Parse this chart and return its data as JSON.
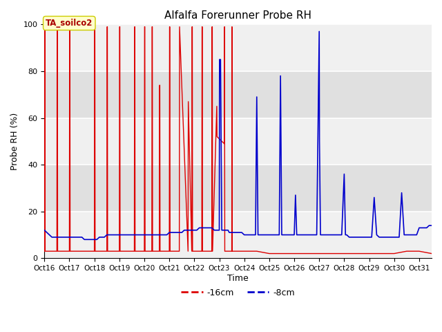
{
  "title": "Alfalfa Forerunner Probe RH",
  "ylabel": "Probe RH (%)",
  "xlabel": "Time",
  "annotation": "TA_soilco2",
  "ylim": [
    0,
    100
  ],
  "xlim": [
    0,
    15.5
  ],
  "legend_labels": [
    "-16cm",
    "-8cm"
  ],
  "legend_colors": [
    "#dd0000",
    "#0000cc"
  ],
  "bg_color": "#e8e8e8",
  "band_color": "#d0d0d0",
  "tick_labels": [
    "Oct 16",
    "Oct 17",
    "Oct 18",
    "Oct 19",
    "Oct 20",
    "Oct 21",
    "Oct 22",
    "Oct 23",
    "Oct 24",
    "Oct 25",
    "Oct 26",
    "Oct 27",
    "Oct 28",
    "Oct 29",
    "Oct 30",
    "Oct 31"
  ],
  "red_x": [
    0.0,
    0.01,
    0.02,
    0.03,
    0.5,
    0.51,
    0.52,
    0.53,
    1.0,
    1.01,
    1.02,
    1.03,
    2.0,
    2.01,
    2.02,
    2.03,
    2.5,
    2.51,
    2.52,
    2.53,
    3.0,
    3.01,
    3.02,
    3.03,
    3.6,
    3.61,
    3.62,
    3.63,
    4.0,
    4.01,
    4.02,
    4.03,
    4.3,
    4.31,
    4.32,
    4.33,
    4.6,
    4.61,
    4.62,
    4.63,
    5.0,
    5.01,
    5.02,
    5.03,
    5.4,
    5.41,
    5.75,
    5.76,
    5.9,
    5.91,
    5.92,
    5.93,
    6.3,
    6.31,
    6.32,
    6.33,
    6.7,
    6.71,
    6.72,
    6.73,
    6.9,
    6.91,
    7.2,
    7.21,
    7.22,
    7.5,
    7.51,
    7.52,
    8.0,
    8.5,
    9.0,
    9.5,
    10.0,
    10.5,
    11.0,
    11.5,
    12.0,
    12.5,
    13.0,
    13.5,
    14.0,
    14.5,
    15.0,
    15.5
  ],
  "red_y": [
    3,
    99,
    99,
    3,
    3,
    99,
    99,
    3,
    3,
    99,
    99,
    3,
    3,
    99,
    99,
    3,
    3,
    99,
    99,
    3,
    3,
    99,
    99,
    3,
    3,
    99,
    99,
    3,
    3,
    99,
    99,
    3,
    3,
    99,
    99,
    3,
    3,
    74,
    74,
    3,
    3,
    99,
    99,
    3,
    3,
    99,
    3,
    67,
    3,
    99,
    99,
    3,
    3,
    99,
    99,
    3,
    3,
    99,
    99,
    3,
    65,
    52,
    49,
    99,
    3,
    3,
    99,
    3,
    3,
    3,
    2,
    2,
    2,
    2,
    2,
    2,
    2,
    2,
    2,
    2,
    2,
    3,
    3,
    2
  ],
  "blue_x": [
    0.0,
    0.1,
    0.2,
    0.3,
    0.4,
    0.5,
    0.6,
    0.7,
    0.8,
    0.9,
    1.0,
    1.1,
    1.2,
    1.3,
    1.4,
    1.5,
    1.6,
    1.7,
    1.8,
    1.9,
    2.0,
    2.1,
    2.2,
    2.3,
    2.4,
    2.5,
    2.6,
    2.7,
    2.8,
    2.9,
    3.0,
    3.1,
    3.2,
    3.3,
    3.4,
    3.5,
    3.6,
    3.7,
    3.8,
    3.9,
    4.0,
    4.1,
    4.2,
    4.3,
    4.4,
    4.5,
    4.6,
    4.7,
    4.8,
    4.9,
    5.0,
    5.1,
    5.2,
    5.3,
    5.4,
    5.5,
    5.6,
    5.7,
    5.8,
    5.9,
    6.0,
    6.1,
    6.2,
    6.3,
    6.4,
    6.5,
    6.6,
    6.7,
    6.8,
    6.9,
    7.0,
    7.01,
    7.05,
    7.1,
    7.15,
    7.2,
    7.25,
    7.3,
    7.32,
    7.35,
    7.4,
    7.5,
    7.6,
    7.7,
    7.8,
    7.9,
    8.0,
    8.1,
    8.2,
    8.3,
    8.4,
    8.45,
    8.5,
    8.55,
    8.6,
    8.7,
    8.8,
    8.9,
    9.0,
    9.1,
    9.2,
    9.3,
    9.4,
    9.45,
    9.5,
    9.55,
    9.6,
    9.7,
    9.8,
    9.9,
    10.0,
    10.05,
    10.1,
    10.2,
    10.3,
    10.4,
    10.5,
    10.6,
    10.7,
    10.8,
    10.9,
    11.0,
    11.01,
    11.05,
    11.1,
    11.2,
    11.3,
    11.4,
    11.5,
    11.6,
    11.7,
    11.8,
    11.9,
    12.0,
    12.05,
    12.1,
    12.2,
    12.3,
    12.4,
    12.45,
    12.5,
    12.55,
    12.6,
    12.7,
    12.8,
    12.9,
    13.0,
    13.1,
    13.2,
    13.3,
    13.4,
    13.5,
    13.6,
    13.7,
    13.8,
    13.9,
    14.0,
    14.1,
    14.2,
    14.3,
    14.4,
    14.5,
    14.6,
    14.7,
    14.8,
    14.9,
    15.0,
    15.1,
    15.2,
    15.3,
    15.4,
    15.5
  ],
  "blue_y": [
    12,
    11,
    10,
    9,
    9,
    9,
    9,
    9,
    9,
    9,
    9,
    9,
    9,
    9,
    9,
    9,
    8,
    8,
    8,
    8,
    8,
    8,
    9,
    9,
    9,
    10,
    10,
    10,
    10,
    10,
    10,
    10,
    10,
    10,
    10,
    10,
    10,
    10,
    10,
    10,
    10,
    10,
    10,
    10,
    10,
    10,
    10,
    10,
    10,
    10,
    11,
    11,
    11,
    11,
    11,
    11,
    12,
    12,
    12,
    12,
    12,
    12,
    13,
    13,
    13,
    13,
    13,
    13,
    12,
    12,
    12,
    85,
    85,
    12,
    12,
    12,
    12,
    12,
    12,
    12,
    11,
    11,
    11,
    11,
    11,
    11,
    10,
    10,
    10,
    10,
    10,
    10,
    69,
    10,
    10,
    10,
    10,
    10,
    10,
    10,
    10,
    10,
    10,
    78,
    10,
    10,
    10,
    10,
    10,
    10,
    10,
    27,
    10,
    10,
    10,
    10,
    10,
    10,
    10,
    10,
    10,
    97,
    50,
    10,
    10,
    10,
    10,
    10,
    10,
    10,
    10,
    10,
    10,
    36,
    10,
    10,
    9,
    9,
    9,
    9,
    9,
    9,
    9,
    9,
    9,
    9,
    9,
    9,
    26,
    10,
    9,
    9,
    9,
    9,
    9,
    9,
    9,
    9,
    9,
    28,
    10,
    10,
    10,
    10,
    10,
    10,
    13,
    13,
    13,
    13,
    14,
    14
  ]
}
